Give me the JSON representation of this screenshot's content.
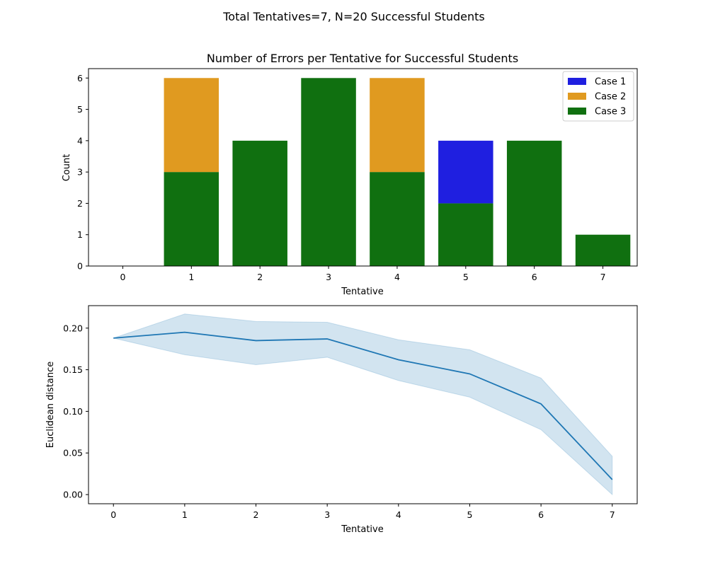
{
  "figure": {
    "suptitle": "Total Tentatives=7, N=20 Successful Students"
  },
  "chart_data": [
    {
      "type": "bar",
      "stacked": true,
      "title": "Number of Errors per Tentative for Successful Students",
      "xlabel": "Tentative",
      "ylabel": "Count",
      "categories": [
        "0",
        "1",
        "2",
        "3",
        "4",
        "5",
        "6",
        "7"
      ],
      "xticks": [
        "0",
        "1",
        "2",
        "3",
        "4",
        "5",
        "6",
        "7"
      ],
      "yticks": [
        "0",
        "1",
        "2",
        "3",
        "4",
        "5",
        "6"
      ],
      "ylim": [
        0,
        6.3
      ],
      "series": [
        {
          "name": "Case 3",
          "color": "#107010",
          "values": [
            0,
            3,
            4,
            6,
            3,
            2,
            4,
            1
          ]
        },
        {
          "name": "Case 2",
          "color": "#e09a20",
          "values": [
            0,
            3,
            0,
            0,
            3,
            0,
            0,
            0
          ]
        },
        {
          "name": "Case 1",
          "color": "#1f1fe0",
          "values": [
            0,
            0,
            0,
            0,
            0,
            2,
            0,
            0
          ]
        }
      ],
      "legend": {
        "position": "top-right",
        "entries": [
          {
            "label": "Case 1",
            "color": "#1f1fe0"
          },
          {
            "label": "Case 2",
            "color": "#e09a20"
          },
          {
            "label": "Case 3",
            "color": "#107010"
          }
        ]
      },
      "grid": false
    },
    {
      "type": "line",
      "title": "",
      "xlabel": "Tentative",
      "ylabel": "Euclidean distance",
      "x": [
        0,
        1,
        2,
        3,
        4,
        5,
        6,
        7
      ],
      "xticks": [
        "0",
        "1",
        "2",
        "3",
        "4",
        "5",
        "6",
        "7"
      ],
      "yticks": [
        "0.00",
        "0.05",
        "0.10",
        "0.15",
        "0.20"
      ],
      "xlim": [
        -0.35,
        7.35
      ],
      "ylim": [
        -0.011,
        0.227
      ],
      "series": [
        {
          "name": "",
          "color": "#1f77b4",
          "values": [
            0.188,
            0.195,
            0.185,
            0.187,
            0.162,
            0.145,
            0.109,
            0.018
          ],
          "ci_lower": [
            0.188,
            0.168,
            0.156,
            0.165,
            0.137,
            0.117,
            0.078,
            0.0
          ],
          "ci_upper": [
            0.188,
            0.217,
            0.208,
            0.207,
            0.186,
            0.174,
            0.14,
            0.046
          ],
          "ci_color": "#1f77b4"
        }
      ],
      "grid": false
    }
  ]
}
